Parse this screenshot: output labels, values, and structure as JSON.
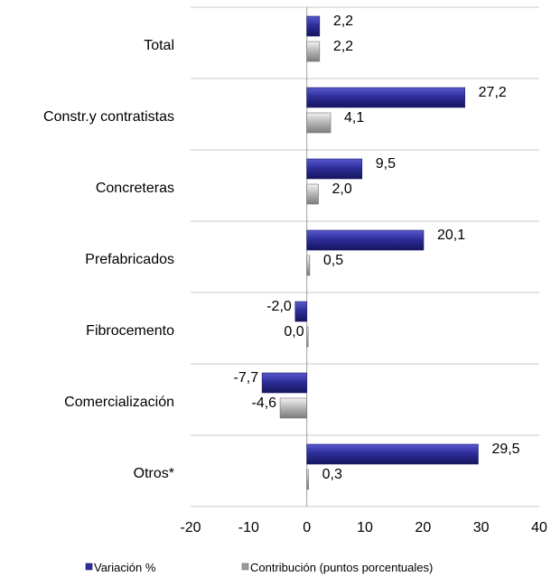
{
  "chart_data": {
    "type": "bar",
    "orientation": "horizontal",
    "categories": [
      "Total",
      "Constr.y contratistas",
      "Concreteras",
      "Prefabricados",
      "Fibrocemento",
      "Comercialización",
      "Otros*"
    ],
    "series": [
      {
        "name": "Variación %",
        "values": [
          2.2,
          27.2,
          9.5,
          20.1,
          -2.0,
          -7.7,
          29.5
        ],
        "labels": [
          "2,2",
          "27,2",
          "9,5",
          "20,1",
          "-2,0",
          "-7,7",
          "29,5"
        ],
        "color": "#2e2e9a"
      },
      {
        "name": "Contribución (puntos porcentuales)",
        "values": [
          2.2,
          4.1,
          2.0,
          0.5,
          0.0,
          -4.6,
          0.3
        ],
        "labels": [
          "2,2",
          "4,1",
          "2,0",
          "0,5",
          "0,0",
          "-4,6",
          "0,3"
        ],
        "color": "#b4b4b4"
      }
    ],
    "xlim": [
      -20,
      40
    ],
    "xticks": [
      -20,
      -10,
      0,
      10,
      20,
      30,
      40
    ],
    "grid": "horizontal category separators",
    "legend_position": "bottom"
  }
}
